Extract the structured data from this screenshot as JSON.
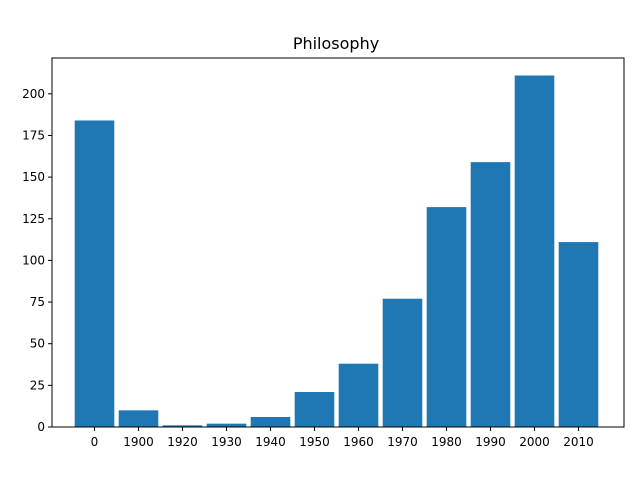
{
  "chart_data": {
    "type": "bar",
    "title": "Philosophy",
    "xlabel": "",
    "ylabel": "",
    "categories": [
      "0",
      "1900",
      "1920",
      "1930",
      "1940",
      "1950",
      "1960",
      "1970",
      "1980",
      "1990",
      "2000",
      "2010"
    ],
    "values": [
      184,
      10,
      1,
      2,
      6,
      21,
      38,
      77,
      132,
      159,
      211,
      111
    ],
    "ylim": [
      0,
      221.5
    ],
    "yticks": [
      0,
      25,
      50,
      75,
      100,
      125,
      150,
      175,
      200
    ],
    "grid": false,
    "bar_color": "#1f77b4"
  }
}
